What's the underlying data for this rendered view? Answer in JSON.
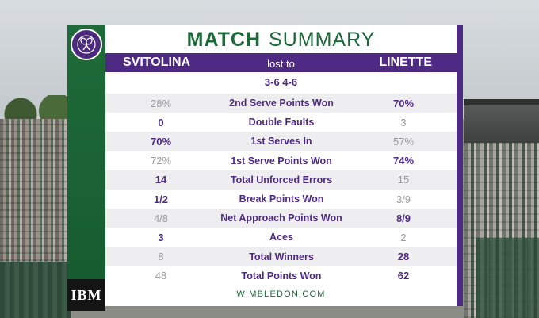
{
  "title": {
    "bold": "MATCH",
    "light": "SUMMARY"
  },
  "players": {
    "left": "SVITOLINA",
    "result": "lost to",
    "right": "LINETTE"
  },
  "score": "3-6 4-6",
  "stats": [
    {
      "label": "2nd Serve Points Won",
      "left": "28%",
      "right": "70%",
      "winner": "right"
    },
    {
      "label": "Double Faults",
      "left": "0",
      "right": "3",
      "winner": "left"
    },
    {
      "label": "1st Serves In",
      "left": "70%",
      "right": "57%",
      "winner": "left"
    },
    {
      "label": "1st Serve Points Won",
      "left": "72%",
      "right": "74%",
      "winner": "right"
    },
    {
      "label": "Total Unforced Errors",
      "left": "14",
      "right": "15",
      "winner": "left"
    },
    {
      "label": "Break Points Won",
      "left": "1/2",
      "right": "3/9",
      "winner": "left"
    },
    {
      "label": "Net Approach Points Won",
      "left": "4/8",
      "right": "8/9",
      "winner": "right"
    },
    {
      "label": "Aces",
      "left": "3",
      "right": "2",
      "winner": "left"
    },
    {
      "label": "Total Winners",
      "left": "8",
      "right": "28",
      "winner": "right"
    },
    {
      "label": "Total Points Won",
      "left": "48",
      "right": "62",
      "winner": "right"
    }
  ],
  "footer": "WIMBLEDON.COM",
  "sponsor": "IBM",
  "colors": {
    "purple": "#4e2a84",
    "green": "#1c6a3a",
    "muted": "#9a9a9a"
  },
  "icons": {
    "logo": "wimbledon-crossed-rackets-icon"
  }
}
